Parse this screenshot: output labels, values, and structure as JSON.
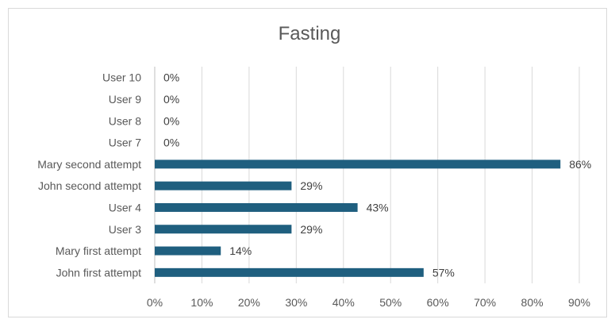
{
  "chart_data": {
    "type": "bar",
    "orientation": "horizontal",
    "title": "Fasting",
    "xlabel": "",
    "ylabel": "",
    "xlim": [
      0,
      0.9
    ],
    "x_ticks": [
      0,
      0.1,
      0.2,
      0.3,
      0.4,
      0.5,
      0.6,
      0.7,
      0.8,
      0.9
    ],
    "x_tick_labels": [
      "0%",
      "10%",
      "20%",
      "30%",
      "40%",
      "50%",
      "60%",
      "70%",
      "80%",
      "90%"
    ],
    "grid": true,
    "legend": "none",
    "bar_color": "#1f5f7f",
    "categories": [
      "John first attempt",
      "Mary first attempt",
      "User 3",
      "User 4",
      "John second attempt",
      "Mary second attempt",
      "User 7",
      "User 8",
      "User 9",
      "User 10"
    ],
    "values": [
      0.57,
      0.14,
      0.29,
      0.43,
      0.29,
      0.86,
      0,
      0,
      0,
      0
    ],
    "data_labels": [
      "57%",
      "14%",
      "29%",
      "43%",
      "29%",
      "86%",
      "0%",
      "0%",
      "0%",
      "0%"
    ]
  }
}
